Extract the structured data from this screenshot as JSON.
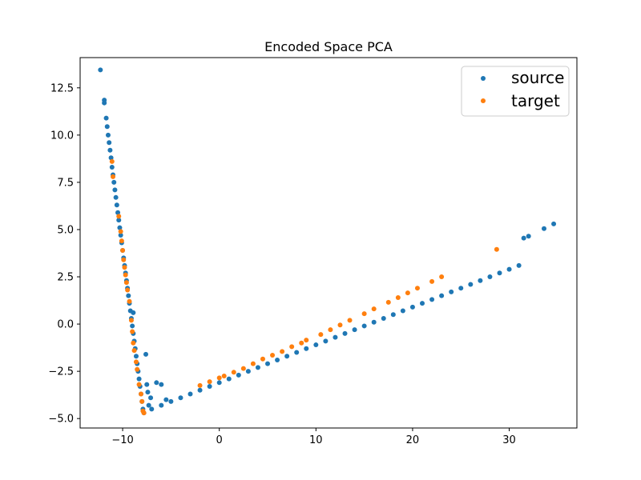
{
  "chart_data": {
    "type": "scatter",
    "title": "Encoded Space PCA",
    "xlabel": "",
    "ylabel": "",
    "xlim": [
      -14.4,
      37.0
    ],
    "ylim": [
      -5.5,
      14.1
    ],
    "xticks": [
      -10,
      0,
      10,
      20,
      30
    ],
    "xtick_labels": [
      "−10",
      "0",
      "10",
      "20",
      "30"
    ],
    "yticks": [
      -5.0,
      -2.5,
      0.0,
      2.5,
      5.0,
      7.5,
      10.0,
      12.5
    ],
    "ytick_labels": [
      "−5.0",
      "−2.5",
      "0.0",
      "2.5",
      "5.0",
      "7.5",
      "10.0",
      "12.5"
    ],
    "grid": false,
    "legend_position": "top-right",
    "series": [
      {
        "name": "source",
        "color": "#1f77b4",
        "points": [
          [
            -12.3,
            13.45
          ],
          [
            -11.9,
            11.85
          ],
          [
            -11.9,
            11.7
          ],
          [
            -11.7,
            10.9
          ],
          [
            -11.6,
            10.45
          ],
          [
            -11.5,
            10.0
          ],
          [
            -11.4,
            9.6
          ],
          [
            -11.3,
            9.2
          ],
          [
            -11.2,
            8.8
          ],
          [
            -11.1,
            8.3
          ],
          [
            -11.0,
            7.9
          ],
          [
            -10.9,
            7.5
          ],
          [
            -10.8,
            7.1
          ],
          [
            -10.7,
            6.7
          ],
          [
            -10.6,
            6.3
          ],
          [
            -10.5,
            5.9
          ],
          [
            -10.4,
            5.5
          ],
          [
            -10.3,
            5.1
          ],
          [
            -10.2,
            4.7
          ],
          [
            -10.1,
            4.3
          ],
          [
            -10.0,
            3.9
          ],
          [
            -9.9,
            3.5
          ],
          [
            -9.8,
            3.1
          ],
          [
            -9.7,
            2.7
          ],
          [
            -9.6,
            2.3
          ],
          [
            -9.5,
            1.9
          ],
          [
            -9.4,
            1.5
          ],
          [
            -9.3,
            1.1
          ],
          [
            -9.2,
            0.7
          ],
          [
            -9.1,
            0.3
          ],
          [
            -9.0,
            -0.1
          ],
          [
            -8.9,
            -0.5
          ],
          [
            -8.8,
            -0.9
          ],
          [
            -8.7,
            -1.3
          ],
          [
            -8.6,
            -1.7
          ],
          [
            -8.5,
            -2.1
          ],
          [
            -8.4,
            -2.5
          ],
          [
            -8.3,
            -2.9
          ],
          [
            -8.2,
            -3.3
          ],
          [
            -8.1,
            -3.7
          ],
          [
            -8.0,
            -4.1
          ],
          [
            -7.9,
            -4.5
          ],
          [
            -7.8,
            -4.7
          ],
          [
            -8.9,
            0.6
          ],
          [
            -7.6,
            -1.6
          ],
          [
            -7.5,
            -3.2
          ],
          [
            -6.5,
            -3.1
          ],
          [
            -6.0,
            -3.2
          ],
          [
            -7.4,
            -3.6
          ],
          [
            -7.1,
            -3.9
          ],
          [
            -5.5,
            -4.0
          ],
          [
            -7.3,
            -4.3
          ],
          [
            -7.0,
            -4.5
          ],
          [
            -6.0,
            -4.3
          ],
          [
            -5.0,
            -4.1
          ],
          [
            -4.0,
            -3.9
          ],
          [
            -3.0,
            -3.7
          ],
          [
            -2.0,
            -3.5
          ],
          [
            -1.0,
            -3.3
          ],
          [
            0.0,
            -3.1
          ],
          [
            1.0,
            -2.9
          ],
          [
            2.0,
            -2.7
          ],
          [
            3.0,
            -2.5
          ],
          [
            4.0,
            -2.3
          ],
          [
            5.0,
            -2.1
          ],
          [
            6.0,
            -1.9
          ],
          [
            7.0,
            -1.7
          ],
          [
            8.0,
            -1.5
          ],
          [
            9.0,
            -1.3
          ],
          [
            10.0,
            -1.1
          ],
          [
            11.0,
            -0.9
          ],
          [
            12.0,
            -0.7
          ],
          [
            13.0,
            -0.5
          ],
          [
            14.0,
            -0.3
          ],
          [
            15.0,
            -0.1
          ],
          [
            16.0,
            0.1
          ],
          [
            17.0,
            0.3
          ],
          [
            18.0,
            0.5
          ],
          [
            19.0,
            0.7
          ],
          [
            20.0,
            0.9
          ],
          [
            21.0,
            1.1
          ],
          [
            22.0,
            1.3
          ],
          [
            23.0,
            1.5
          ],
          [
            24.0,
            1.7
          ],
          [
            25.0,
            1.9
          ],
          [
            26.0,
            2.1
          ],
          [
            27.0,
            2.3
          ],
          [
            28.0,
            2.5
          ],
          [
            29.0,
            2.7
          ],
          [
            30.0,
            2.9
          ],
          [
            31.0,
            3.1
          ],
          [
            31.5,
            4.55
          ],
          [
            32.0,
            4.65
          ],
          [
            33.6,
            5.05
          ],
          [
            34.6,
            5.3
          ]
        ]
      },
      {
        "name": "target",
        "color": "#ff7f0e",
        "points": [
          [
            -11.1,
            8.6
          ],
          [
            -11.0,
            7.8
          ],
          [
            -10.4,
            5.7
          ],
          [
            -10.2,
            4.9
          ],
          [
            -10.1,
            4.4
          ],
          [
            -10.0,
            3.9
          ],
          [
            -9.9,
            3.4
          ],
          [
            -9.8,
            3.0
          ],
          [
            -9.7,
            2.6
          ],
          [
            -9.6,
            2.2
          ],
          [
            -9.5,
            1.8
          ],
          [
            -9.3,
            1.2
          ],
          [
            -9.1,
            0.2
          ],
          [
            -9.0,
            -0.4
          ],
          [
            -8.9,
            -1.0
          ],
          [
            -8.8,
            -1.4
          ],
          [
            -8.6,
            -2.0
          ],
          [
            -8.5,
            -2.4
          ],
          [
            -8.3,
            -3.2
          ],
          [
            -8.1,
            -3.7
          ],
          [
            -8.0,
            -4.1
          ],
          [
            -7.9,
            -4.6
          ],
          [
            -7.8,
            -4.7
          ],
          [
            -2.0,
            -3.25
          ],
          [
            -1.0,
            -3.05
          ],
          [
            0.0,
            -2.85
          ],
          [
            0.5,
            -2.75
          ],
          [
            1.5,
            -2.55
          ],
          [
            2.5,
            -2.35
          ],
          [
            3.5,
            -2.1
          ],
          [
            4.5,
            -1.85
          ],
          [
            5.5,
            -1.65
          ],
          [
            6.5,
            -1.45
          ],
          [
            7.5,
            -1.2
          ],
          [
            8.5,
            -1.0
          ],
          [
            9.0,
            -0.85
          ],
          [
            10.5,
            -0.55
          ],
          [
            11.5,
            -0.3
          ],
          [
            12.5,
            -0.05
          ],
          [
            13.5,
            0.2
          ],
          [
            15.0,
            0.55
          ],
          [
            16.0,
            0.8
          ],
          [
            17.5,
            1.15
          ],
          [
            18.5,
            1.4
          ],
          [
            19.5,
            1.65
          ],
          [
            20.5,
            1.9
          ],
          [
            22.0,
            2.25
          ],
          [
            23.0,
            2.5
          ],
          [
            28.7,
            3.95
          ]
        ]
      }
    ]
  }
}
